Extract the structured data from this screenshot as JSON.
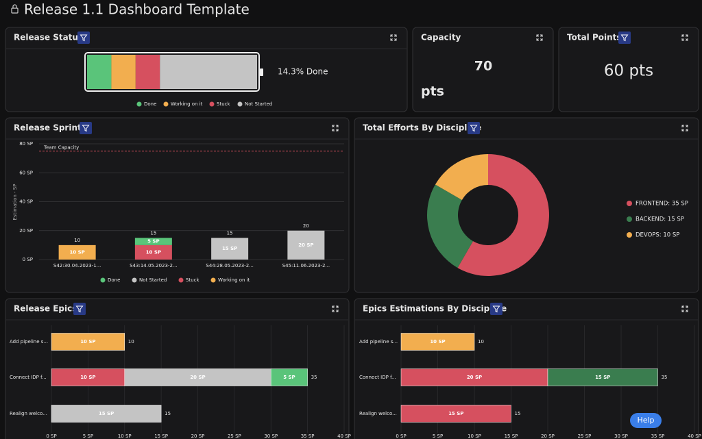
{
  "header": {
    "title": "Release 1.1 Dashboard Template"
  },
  "release_status": {
    "title": "Release Status",
    "type": "battery",
    "summary": "14.3% Done",
    "categories": [
      "Done",
      "Working on it",
      "Stuck",
      "Not Started"
    ],
    "values": [
      1,
      1,
      1,
      4
    ],
    "colors": [
      "#5ac47a",
      "#f2ae4f",
      "#d6505f",
      "#c4c4c4"
    ]
  },
  "capacity": {
    "title": "Capacity",
    "value": 70,
    "unit": "pts"
  },
  "total_points": {
    "title": "Total Points",
    "value": "60 pts"
  },
  "release_sprints": {
    "title": "Release Sprints",
    "type": "stacked-bar",
    "categories": [
      "S42:30.04.2023-1...",
      "S43:14.05.2023-2...",
      "S44:28.05.2023-2...",
      "S45:11.06.2023-2..."
    ],
    "series": [
      {
        "name": "Done",
        "color": "#5ac47a",
        "values": [
          null,
          5,
          null,
          null
        ],
        "value_labels": [
          null,
          "5 SP",
          null,
          null
        ]
      },
      {
        "name": "Not Started",
        "color": "#c4c4c4",
        "values": [
          null,
          null,
          15,
          20
        ],
        "value_labels": [
          null,
          null,
          "15 SP",
          "20 SP"
        ]
      },
      {
        "name": "Stuck",
        "color": "#d6505f",
        "values": [
          null,
          10,
          null,
          null
        ],
        "value_labels": [
          null,
          "10 SP",
          null,
          null
        ]
      },
      {
        "name": "Working on it",
        "color": "#f2ae4f",
        "values": [
          10,
          null,
          null,
          null
        ],
        "value_labels": [
          "10 SP",
          null,
          null,
          null
        ]
      }
    ],
    "stack_order": [
      3,
      2,
      0,
      1
    ],
    "totals": [
      10,
      15,
      15,
      20
    ],
    "ylabel": "Estimation - SP",
    "ylim": [
      0,
      80
    ],
    "yticks": [
      {
        "value": 0,
        "label": "0 SP"
      },
      {
        "value": 20,
        "label": "20 SP"
      },
      {
        "value": 40,
        "label": "40 SP"
      },
      {
        "value": 60,
        "label": "60 SP"
      },
      {
        "value": 80,
        "label": "80 SP"
      }
    ],
    "capacity_line": {
      "label": "Team Capacity",
      "value": 75,
      "color": "#d6505f"
    },
    "grid": true
  },
  "total_efforts": {
    "title": "Total Efforts By Discipline",
    "type": "donut",
    "categories": [
      "FRONTEND",
      "BACKEND",
      "DEVOPS"
    ],
    "values": [
      35,
      15,
      10
    ],
    "labels": [
      "FRONTEND: 35 SP",
      "BACKEND: 15 SP",
      "DEVOPS: 10 SP"
    ],
    "colors": [
      "#d6505f",
      "#3a7d4f",
      "#f2ae4f"
    ]
  },
  "release_epics": {
    "title": "Release Epics",
    "type": "stacked-hbar",
    "categories": [
      "Add pipeline s...",
      "Connect IDP f...",
      "Realign welco..."
    ],
    "series": [
      {
        "name": "Working on it",
        "color": "#f2ae4f",
        "values": [
          10,
          null,
          null
        ],
        "value_labels": [
          "10 SP",
          null,
          null
        ]
      },
      {
        "name": "Stuck",
        "color": "#d6505f",
        "values": [
          null,
          10,
          null
        ],
        "value_labels": [
          null,
          "10 SP",
          null
        ]
      },
      {
        "name": "Not Started",
        "color": "#c4c4c4",
        "values": [
          null,
          20,
          15
        ],
        "value_labels": [
          null,
          "20 SP",
          "15 SP"
        ]
      },
      {
        "name": "Done",
        "color": "#5ac47a",
        "values": [
          null,
          5,
          null
        ],
        "value_labels": [
          null,
          "5 SP",
          null
        ]
      }
    ],
    "totals": [
      10,
      35,
      15
    ],
    "xlim": [
      0,
      40
    ],
    "xticks": [
      {
        "value": 0,
        "label": "0 SP"
      },
      {
        "value": 5,
        "label": "5 SP"
      },
      {
        "value": 10,
        "label": "10 SP"
      },
      {
        "value": 15,
        "label": "15 SP"
      },
      {
        "value": 20,
        "label": "20 SP"
      },
      {
        "value": 25,
        "label": "25 SP"
      },
      {
        "value": 30,
        "label": "30 SP"
      },
      {
        "value": 35,
        "label": "35 SP"
      },
      {
        "value": 40,
        "label": "40 SP"
      }
    ]
  },
  "epics_estimations": {
    "title": "Epics Estimations By Discipline",
    "type": "stacked-hbar",
    "categories": [
      "Add pipeline s...",
      "Connect IDP f...",
      "Realign welco..."
    ],
    "series": [
      {
        "name": "FRONTEND",
        "color": "#d6505f",
        "values": [
          null,
          20,
          15
        ],
        "value_labels": [
          null,
          "20 SP",
          "15 SP"
        ]
      },
      {
        "name": "BACKEND",
        "color": "#3a7d4f",
        "values": [
          null,
          15,
          null
        ],
        "value_labels": [
          null,
          "15 SP",
          null
        ]
      },
      {
        "name": "DEVOPS",
        "color": "#f2ae4f",
        "values": [
          10,
          null,
          null
        ],
        "value_labels": [
          "10 SP",
          null,
          null
        ]
      }
    ],
    "totals": [
      10,
      35,
      15
    ],
    "xlim": [
      0,
      40
    ],
    "xticks": [
      {
        "value": 0,
        "label": "0 SP"
      },
      {
        "value": 5,
        "label": "5 SP"
      },
      {
        "value": 10,
        "label": "10 SP"
      },
      {
        "value": 15,
        "label": "15 SP"
      },
      {
        "value": 20,
        "label": "20 SP"
      },
      {
        "value": 25,
        "label": "25 SP"
      },
      {
        "value": 30,
        "label": "30 SP"
      },
      {
        "value": 35,
        "label": "35 SP"
      },
      {
        "value": 40,
        "label": "40 SP"
      }
    ]
  },
  "help": "Help"
}
